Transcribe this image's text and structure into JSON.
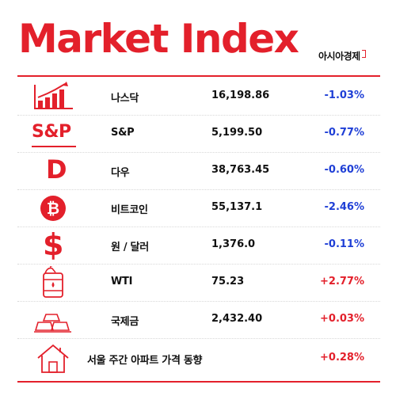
{
  "header": {
    "title": "Market Index",
    "brand": "아시아경제"
  },
  "colors": {
    "accent": "#e3202b",
    "down": "#1f3fd6",
    "up": "#e3202b"
  },
  "rows": [
    {
      "name": "나스닥",
      "value": "16,198.86",
      "change": "-1.03%",
      "direction": "down",
      "icon": "bar-chart-icon"
    },
    {
      "name": "S&P",
      "value": "5,199.50",
      "change": "-0.77%",
      "direction": "down",
      "icon": "sp-logo-icon",
      "icon_text": "S&P"
    },
    {
      "name": "다우",
      "value": "38,763.45",
      "change": "-0.60%",
      "direction": "down",
      "icon": "dow-logo-icon",
      "icon_text": "D"
    },
    {
      "name": "비트코인",
      "value": "55,137.1",
      "change": "-2.46%",
      "direction": "down",
      "icon": "bitcoin-icon",
      "icon_text": "₿"
    },
    {
      "name": "원 / 달러",
      "value": "1,376.0",
      "change": "-0.11%",
      "direction": "down",
      "icon": "dollar-icon",
      "icon_text": "$"
    },
    {
      "name": "WTI",
      "value": "75.23",
      "change": "+2.77%",
      "direction": "up",
      "icon": "oil-barrel-icon"
    },
    {
      "name": "국제금",
      "value": "2,432.40",
      "change": "+0.03%",
      "direction": "up",
      "icon": "gold-bars-icon"
    },
    {
      "name": "서울 주간 아파트 가격 동향",
      "value": "",
      "change": "+0.28%",
      "direction": "up",
      "icon": "house-icon"
    }
  ]
}
